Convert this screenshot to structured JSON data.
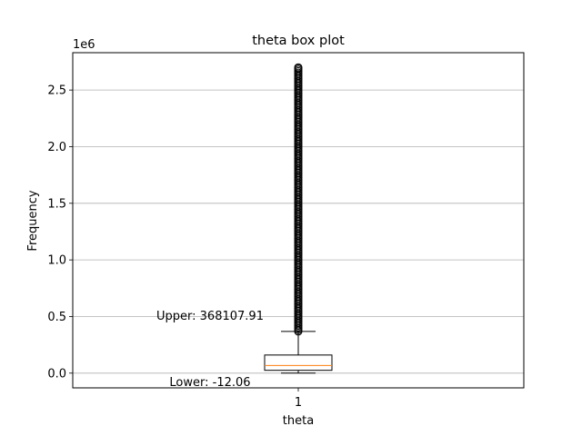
{
  "chart_data": {
    "type": "box",
    "title": "theta box plot",
    "xlabel": "theta",
    "ylabel": "Frequency",
    "y_offset_label": "1e6",
    "categories": [
      "1"
    ],
    "ylim": [
      -0.13,
      2.83
    ],
    "yticks": [
      0.0,
      0.5,
      1.0,
      1.5,
      2.0,
      2.5
    ],
    "ytick_labels": [
      "0.0",
      "0.5",
      "1.0",
      "1.5",
      "2.0",
      "2.5"
    ],
    "grid": "y-major",
    "box": {
      "whisker_low": -1.206e-05,
      "q1": 0.025,
      "median": 0.068,
      "q3": 0.16,
      "whisker_high": 0.368,
      "outliers_min": 0.368,
      "outliers_max": 2.7
    },
    "annotations": [
      {
        "name": "upper-annotation",
        "text": "Upper: 368107.91",
        "y": 0.368
      },
      {
        "name": "lower-annotation",
        "text": "Lower: -12.06",
        "y": -1.206e-05
      }
    ],
    "colors": {
      "box": "#000000",
      "median": "#ff7f0e",
      "grid": "#b0b0b0"
    }
  }
}
